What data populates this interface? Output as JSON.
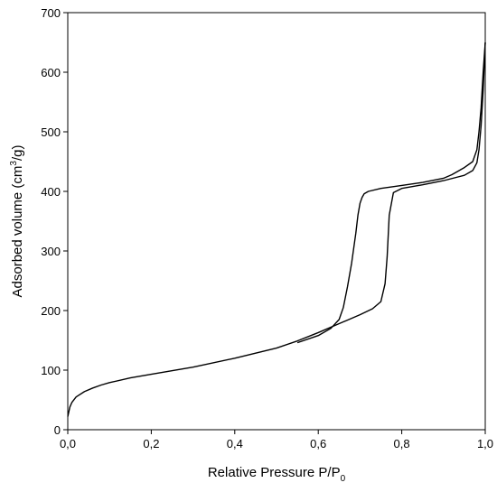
{
  "chart_data": {
    "type": "line",
    "title": "",
    "xlabel": {
      "main": "Relative Pressure P/P",
      "sub": "0"
    },
    "ylabel": {
      "before": "Adsorbed volume (cm",
      "sup": "3",
      "after": "/g)"
    },
    "xlim": [
      0,
      1.0
    ],
    "ylim": [
      0,
      700
    ],
    "x_ticks": [
      0,
      0.2,
      0.4,
      0.6,
      0.8,
      1.0
    ],
    "x_tick_labels": [
      "0,0",
      "0,2",
      "0,4",
      "0,6",
      "0,8",
      "1,0"
    ],
    "y_ticks": [
      0,
      100,
      200,
      300,
      400,
      500,
      600,
      700
    ],
    "y_tick_labels": [
      "0",
      "100",
      "200",
      "300",
      "400",
      "500",
      "600",
      "700"
    ],
    "grid": false,
    "series": [
      {
        "color": "#000000",
        "x": [
          0.0,
          0.005,
          0.01,
          0.02,
          0.04,
          0.06,
          0.08,
          0.1,
          0.15,
          0.2,
          0.3,
          0.4,
          0.5,
          0.55,
          0.6,
          0.65,
          0.7,
          0.73,
          0.75,
          0.76,
          0.765,
          0.77,
          0.78,
          0.8,
          0.85,
          0.9,
          0.95,
          0.97,
          0.98,
          0.985,
          0.99,
          0.995,
          1.0
        ],
        "y": [
          22,
          38,
          46,
          55,
          64,
          70,
          75,
          79,
          87,
          93,
          105,
          120,
          137,
          149,
          163,
          178,
          193,
          203,
          215,
          245,
          290,
          360,
          398,
          405,
          411,
          418,
          427,
          435,
          448,
          470,
          510,
          570,
          650
        ]
      },
      {
        "color": "#000000",
        "x": [
          1.0,
          0.995,
          0.99,
          0.985,
          0.98,
          0.97,
          0.95,
          0.92,
          0.9,
          0.85,
          0.8,
          0.75,
          0.72,
          0.71,
          0.705,
          0.7,
          0.695,
          0.69,
          0.68,
          0.67,
          0.66,
          0.65,
          0.63,
          0.6,
          0.55
        ],
        "y": [
          650,
          600,
          540,
          500,
          470,
          450,
          440,
          428,
          422,
          415,
          410,
          405,
          400,
          396,
          390,
          380,
          360,
          330,
          280,
          240,
          205,
          185,
          170,
          158,
          146
        ]
      }
    ]
  }
}
